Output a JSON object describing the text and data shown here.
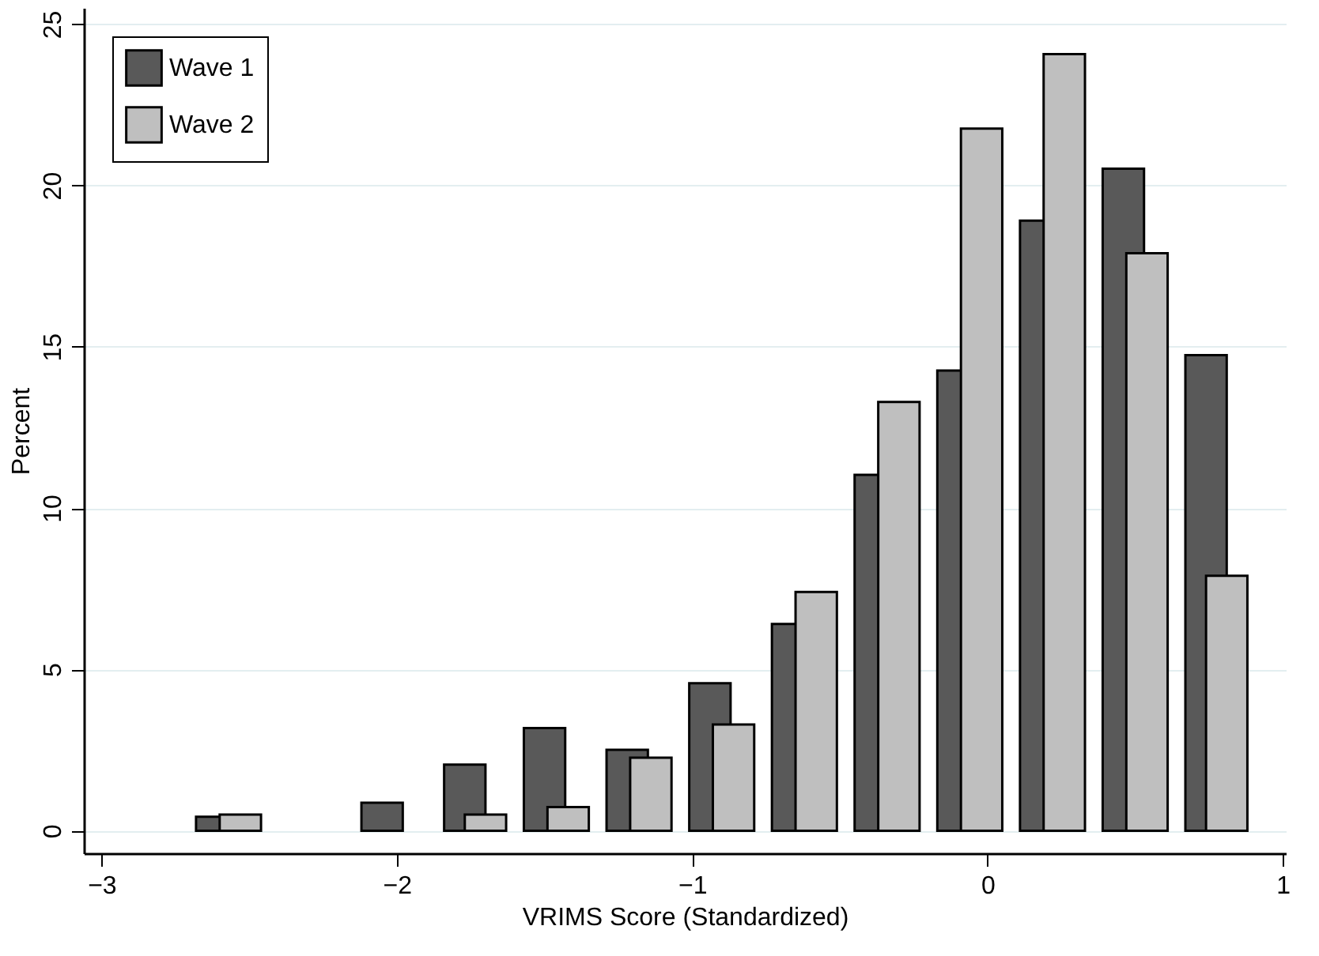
{
  "chart_data": {
    "type": "bar",
    "xlabel": "VRIMS Score (Standardized)",
    "ylabel": "Percent",
    "xlim": [
      -3.06,
      1.01
    ],
    "xticks": [
      -3,
      -2,
      -1,
      0,
      1
    ],
    "ylim": [
      -0.7,
      25.5
    ],
    "yticks": [
      0,
      5,
      10,
      15,
      20,
      25
    ],
    "grid": "y",
    "legend": "top left",
    "series": [
      {
        "name": "Wave 1",
        "color": "#595959",
        "x": [
          -2.61,
          -2.05,
          -1.77,
          -1.5,
          -1.22,
          -0.94,
          -0.66,
          -0.38,
          -0.1,
          0.18,
          0.46,
          0.74
        ],
        "values": [
          0.43,
          0.87,
          2.05,
          3.18,
          2.51,
          4.57,
          6.41,
          11.03,
          14.26,
          18.91,
          20.52,
          14.74
        ]
      },
      {
        "name": "Wave 2",
        "color": "#bfbfbf",
        "x": [
          -2.53,
          -1.7,
          -1.42,
          -1.14,
          -0.86,
          -0.58,
          -0.3,
          -0.02,
          0.26,
          0.54,
          0.81
        ],
        "values": [
          0.5,
          0.5,
          0.73,
          2.26,
          3.29,
          7.4,
          13.29,
          21.76,
          24.07,
          17.9,
          7.9
        ]
      }
    ]
  }
}
